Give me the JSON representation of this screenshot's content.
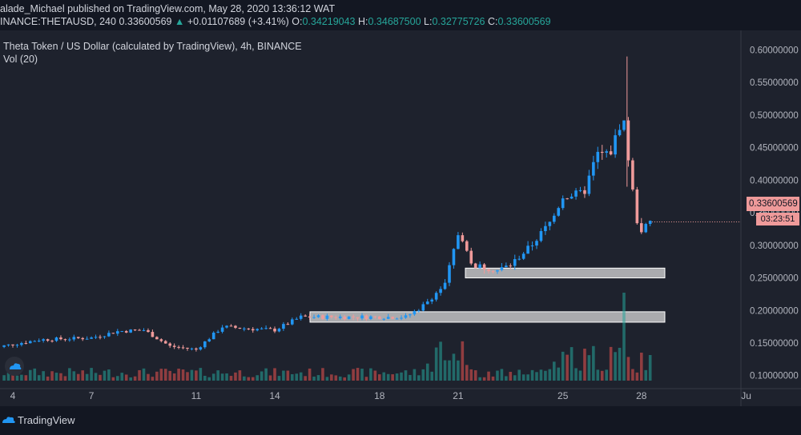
{
  "header": {
    "publisher_line": "alade_Michael published on TradingView.com, May 28, 2020 13:36:12 WAT",
    "symbol": "INANCE:THETAUSD, 240",
    "last": "0.33600569",
    "change": "+0.01107689 (+3.41%)",
    "o_label": "O:",
    "o_value": "0.34219043",
    "h_label": "H:",
    "h_value": "0.34687500",
    "l_label": "L:",
    "l_value": "0.32775726",
    "c_label": "C:",
    "c_value": "0.33600569",
    "up_arrow": "▲"
  },
  "legend": {
    "title": "Theta Token / US Dollar (calculated by TradingView), 4h, BINANCE",
    "volume": "Vol (20)"
  },
  "price_badge": "0.33600569",
  "timer_badge": "03:23:51",
  "footer": {
    "brand": "TradingView"
  },
  "colors": {
    "up": "#2196f3",
    "down": "#ef9a9a",
    "vol_up": "#26a69a",
    "vol_down": "#ef5350",
    "zone": "#d9d9d9",
    "background": "#1e222d",
    "panel": "#131722"
  },
  "chart_data": {
    "type": "candlestick",
    "symbol": "THETAUSD",
    "interval": "4h",
    "exchange": "BINANCE",
    "y_ticks": [
      "0.60000000",
      "0.55000000",
      "0.50000000",
      "0.45000000",
      "0.40000000",
      "0.35000000",
      "0.30000000",
      "0.25000000",
      "0.20000000",
      "0.15000000",
      "0.10000000"
    ],
    "ylim": [
      0.08,
      0.63
    ],
    "x_ticks": [
      "4",
      "7",
      "11",
      "14",
      "18",
      "21",
      "25",
      "28",
      "Ju"
    ],
    "support_zones": [
      {
        "low": 0.25,
        "high": 0.265
      },
      {
        "low": 0.182,
        "high": 0.198
      }
    ],
    "anchors": [
      {
        "day": 3,
        "price": 0.141
      },
      {
        "day": 5,
        "price": 0.155
      },
      {
        "day": 7,
        "price": 0.158
      },
      {
        "day": 8,
        "price": 0.168
      },
      {
        "day": 9,
        "price": 0.17
      },
      {
        "day": 10,
        "price": 0.145
      },
      {
        "day": 11,
        "price": 0.14
      },
      {
        "day": 12,
        "price": 0.175
      },
      {
        "day": 13,
        "price": 0.172
      },
      {
        "day": 14,
        "price": 0.17
      },
      {
        "day": 15,
        "price": 0.19
      },
      {
        "day": 17,
        "price": 0.19
      },
      {
        "day": 19,
        "price": 0.19
      },
      {
        "day": 19.6,
        "price": 0.205
      },
      {
        "day": 20.5,
        "price": 0.24
      },
      {
        "day": 21.05,
        "price": 0.325
      },
      {
        "day": 21.5,
        "price": 0.27
      },
      {
        "day": 22.5,
        "price": 0.262
      },
      {
        "day": 23,
        "price": 0.27
      },
      {
        "day": 23.8,
        "price": 0.3
      },
      {
        "day": 24.6,
        "price": 0.34
      },
      {
        "day": 25,
        "price": 0.375
      },
      {
        "day": 25.8,
        "price": 0.38
      },
      {
        "day": 26.3,
        "price": 0.44
      },
      {
        "day": 26.8,
        "price": 0.44
      },
      {
        "day": 27.3,
        "price": 0.5
      },
      {
        "day": 27.6,
        "price": 0.4
      },
      {
        "day": 27.9,
        "price": 0.32
      },
      {
        "day": 28.4,
        "price": 0.336
      }
    ]
  }
}
